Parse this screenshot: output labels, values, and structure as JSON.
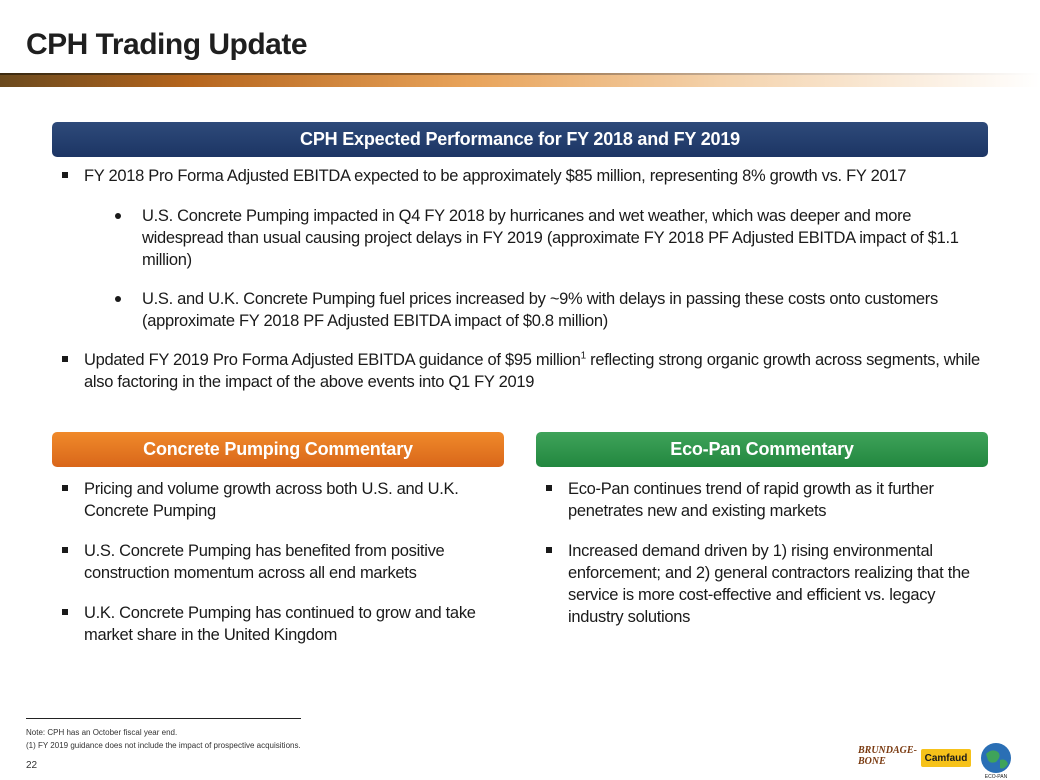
{
  "page": {
    "title": "CPH Trading Update",
    "page_number": "22"
  },
  "main_section": {
    "header": "CPH Expected Performance for FY 2018 and FY 2019",
    "bullet1": "FY 2018 Pro Forma Adjusted EBITDA expected to be approximately $85 million, representing 8% growth vs. FY 2017",
    "sub1": "U.S. Concrete Pumping impacted in Q4 FY 2018 by hurricanes and wet weather, which was deeper and more widespread than usual causing project delays in FY 2019 (approximate FY 2018 PF Adjusted EBITDA impact of $1.1 million)",
    "sub2": "U.S. and U.K. Concrete Pumping fuel prices increased by ~9% with delays in passing these costs onto customers (approximate FY 2018 PF Adjusted EBITDA impact of $0.8 million)",
    "bullet2_pre": "Updated FY 2019 Pro Forma Adjusted EBITDA guidance of $95 million",
    "bullet2_sup": "1",
    "bullet2_post": " reflecting strong organic growth across segments, while also factoring in the impact of the above events into Q1 FY 2019"
  },
  "concrete_pumping": {
    "header": "Concrete Pumping Commentary",
    "items": [
      "Pricing and volume growth across both U.S. and U.K. Concrete Pumping",
      "U.S. Concrete Pumping has benefited from positive construction momentum across all end markets",
      "U.K. Concrete Pumping has continued to grow and take market share in the United Kingdom"
    ]
  },
  "eco_pan": {
    "header": "Eco-Pan Commentary",
    "items": [
      "Eco-Pan continues trend of rapid growth as it further penetrates new and existing markets",
      "Increased demand driven by 1) rising environmental enforcement; and 2) general contractors realizing that the service is more cost-effective  and efficient vs. legacy industry solutions"
    ]
  },
  "footnotes": {
    "note": "Note: CPH has an October fiscal year end.",
    "fn1": "(1) FY 2019 guidance does not include the impact of prospective acquisitions."
  },
  "logos": {
    "brundage": "BRUNDAGE-BONE",
    "camfaud": "Camfaud",
    "ecopan": "ECO-PAN"
  },
  "colors": {
    "navy": "#1c3564",
    "orange": "#d9661a",
    "green": "#22873f"
  }
}
